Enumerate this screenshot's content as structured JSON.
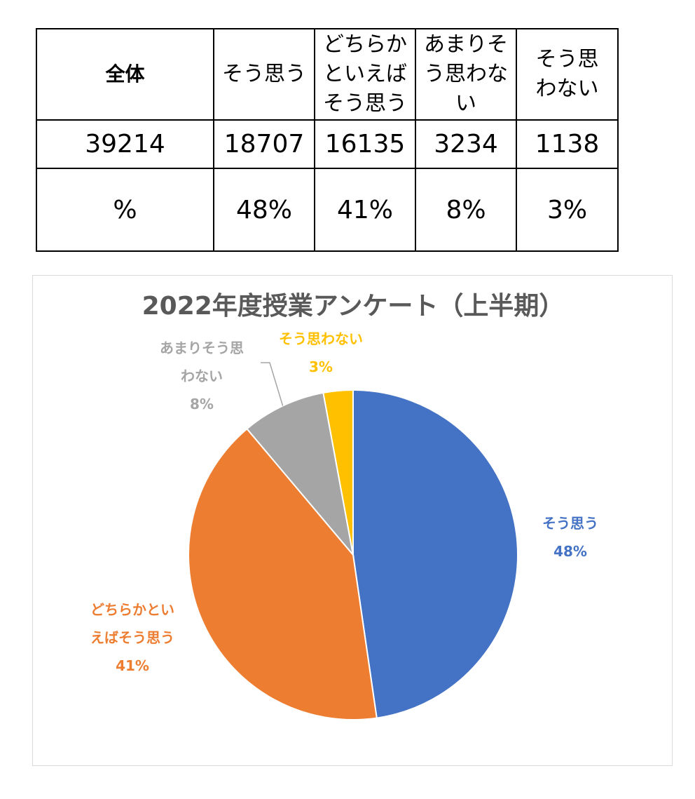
{
  "table": {
    "headers": [
      "全体",
      "そう思う",
      "どちらかといえばそう思う",
      "あまりそう思わない",
      "そう思わない"
    ],
    "header_lines": [
      [
        "全体"
      ],
      [
        "そう思う"
      ],
      [
        "どちらか",
        "といえば",
        "そう思う"
      ],
      [
        "あまりそ",
        "う思わな",
        "い"
      ],
      [
        "そう思",
        "わない"
      ]
    ],
    "counts": [
      "39214",
      "18707",
      "16135",
      "3234",
      "1138"
    ],
    "percents": [
      "%",
      "48%",
      "41%",
      "8%",
      "3%"
    ]
  },
  "chart_data": {
    "type": "pie",
    "title": "2022年度授業アンケート（上半期）",
    "categories": [
      "そう思う",
      "どちらかといえばそう思う",
      "あまりそう思わない",
      "そう思わない"
    ],
    "values": [
      18707,
      16135,
      3234,
      1138
    ],
    "percent_labels": [
      "48%",
      "41%",
      "8%",
      "3%"
    ],
    "label_lines": [
      [
        "そう思う"
      ],
      [
        "どちらかとい",
        "えばそう思う"
      ],
      [
        "あまりそう思",
        "わない"
      ],
      [
        "そう思わない"
      ]
    ],
    "colors": [
      "#4472c4",
      "#ed7d31",
      "#a5a5a5",
      "#ffc000"
    ],
    "start_angle": "12 o'clock",
    "direction": "clockwise",
    "legend": "none"
  }
}
